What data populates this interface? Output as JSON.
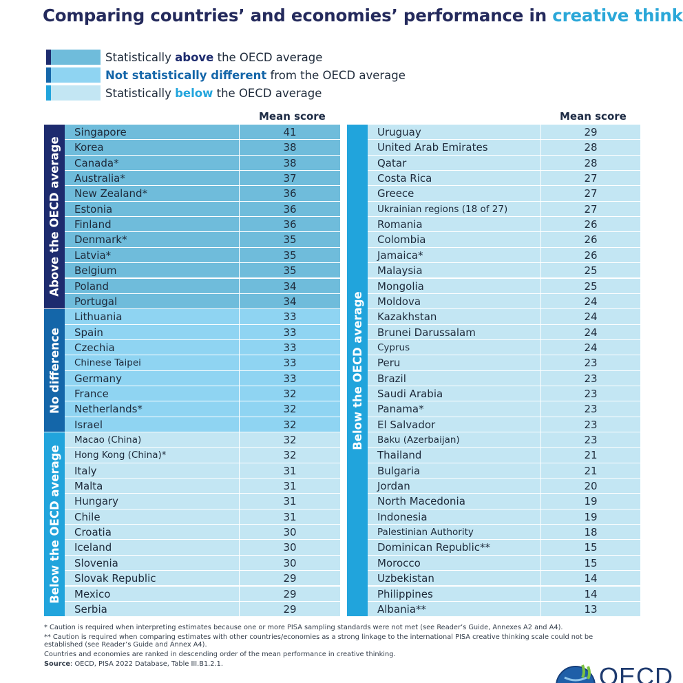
{
  "title": {
    "main": "Comparing countries’ and economies’ performance in ",
    "accent": "creative thinking"
  },
  "legend": [
    {
      "pre": "Statistically ",
      "bold": "above",
      "post": " the OECD average"
    },
    {
      "pre": "",
      "bold": "Not statistically different",
      "post": " from the OECD average"
    },
    {
      "pre": "Statistically ",
      "bold": "below",
      "post": " the OECD average"
    }
  ],
  "colors": {
    "above": "#6fbcdb",
    "no_difference": "#8fd4f2",
    "below": "#c3e6f3",
    "band_above": "#1d2b6e",
    "band_no_difference": "#1466a9",
    "band_below": "#21a4dc"
  },
  "chart_data": {
    "type": "table",
    "column_header": "Mean score",
    "group_labels": {
      "above": "Above the OECD average",
      "no_difference": "No difference",
      "below": "Below the OECD average"
    },
    "rows": [
      {
        "country": "Singapore",
        "score": 41,
        "group": "above"
      },
      {
        "country": "Korea",
        "score": 38,
        "group": "above"
      },
      {
        "country": "Canada*",
        "score": 38,
        "group": "above"
      },
      {
        "country": "Australia*",
        "score": 37,
        "group": "above"
      },
      {
        "country": "New Zealand*",
        "score": 36,
        "group": "above"
      },
      {
        "country": "Estonia",
        "score": 36,
        "group": "above"
      },
      {
        "country": "Finland",
        "score": 36,
        "group": "above"
      },
      {
        "country": "Denmark*",
        "score": 35,
        "group": "above"
      },
      {
        "country": "Latvia*",
        "score": 35,
        "group": "above"
      },
      {
        "country": "Belgium",
        "score": 35,
        "group": "above"
      },
      {
        "country": "Poland",
        "score": 34,
        "group": "above"
      },
      {
        "country": "Portugal",
        "score": 34,
        "group": "above"
      },
      {
        "country": "Lithuania",
        "score": 33,
        "group": "no_difference"
      },
      {
        "country": "Spain",
        "score": 33,
        "group": "no_difference"
      },
      {
        "country": "Czechia",
        "score": 33,
        "group": "no_difference"
      },
      {
        "country": "Chinese Taipei",
        "score": 33,
        "group": "no_difference"
      },
      {
        "country": "Germany",
        "score": 33,
        "group": "no_difference"
      },
      {
        "country": "France",
        "score": 32,
        "group": "no_difference"
      },
      {
        "country": "Netherlands*",
        "score": 32,
        "group": "no_difference"
      },
      {
        "country": "Israel",
        "score": 32,
        "group": "no_difference"
      },
      {
        "country": "Macao (China)",
        "score": 32,
        "group": "below"
      },
      {
        "country": "Hong Kong (China)*",
        "score": 32,
        "group": "below"
      },
      {
        "country": "Italy",
        "score": 31,
        "group": "below"
      },
      {
        "country": "Malta",
        "score": 31,
        "group": "below"
      },
      {
        "country": "Hungary",
        "score": 31,
        "group": "below"
      },
      {
        "country": "Chile",
        "score": 31,
        "group": "below"
      },
      {
        "country": "Croatia",
        "score": 30,
        "group": "below"
      },
      {
        "country": "Iceland",
        "score": 30,
        "group": "below"
      },
      {
        "country": "Slovenia",
        "score": 30,
        "group": "below"
      },
      {
        "country": "Slovak Republic",
        "score": 29,
        "group": "below"
      },
      {
        "country": "Mexico",
        "score": 29,
        "group": "below"
      },
      {
        "country": "Serbia",
        "score": 29,
        "group": "below"
      },
      {
        "country": "Uruguay",
        "score": 29,
        "group": "below"
      },
      {
        "country": "United Arab Emirates",
        "score": 28,
        "group": "below"
      },
      {
        "country": "Qatar",
        "score": 28,
        "group": "below"
      },
      {
        "country": "Costa Rica",
        "score": 27,
        "group": "below"
      },
      {
        "country": "Greece",
        "score": 27,
        "group": "below"
      },
      {
        "country": "Ukrainian regions (18 of 27)",
        "score": 27,
        "group": "below"
      },
      {
        "country": "Romania",
        "score": 26,
        "group": "below"
      },
      {
        "country": "Colombia",
        "score": 26,
        "group": "below"
      },
      {
        "country": "Jamaica*",
        "score": 26,
        "group": "below"
      },
      {
        "country": "Malaysia",
        "score": 25,
        "group": "below"
      },
      {
        "country": "Mongolia",
        "score": 25,
        "group": "below"
      },
      {
        "country": "Moldova",
        "score": 24,
        "group": "below"
      },
      {
        "country": "Kazakhstan",
        "score": 24,
        "group": "below"
      },
      {
        "country": "Brunei Darussalam",
        "score": 24,
        "group": "below"
      },
      {
        "country": "Cyprus",
        "score": 24,
        "group": "below"
      },
      {
        "country": "Peru",
        "score": 23,
        "group": "below"
      },
      {
        "country": "Brazil",
        "score": 23,
        "group": "below"
      },
      {
        "country": "Saudi Arabia",
        "score": 23,
        "group": "below"
      },
      {
        "country": "Panama*",
        "score": 23,
        "group": "below"
      },
      {
        "country": "El Salvador",
        "score": 23,
        "group": "below"
      },
      {
        "country": "Baku (Azerbaijan)",
        "score": 23,
        "group": "below"
      },
      {
        "country": "Thailand",
        "score": 21,
        "group": "below"
      },
      {
        "country": "Bulgaria",
        "score": 21,
        "group": "below"
      },
      {
        "country": "Jordan",
        "score": 20,
        "group": "below"
      },
      {
        "country": "North Macedonia",
        "score": 19,
        "group": "below"
      },
      {
        "country": "Indonesia",
        "score": 19,
        "group": "below"
      },
      {
        "country": "Palestinian Authority",
        "score": 18,
        "group": "below"
      },
      {
        "country": "Dominican Republic**",
        "score": 15,
        "group": "below"
      },
      {
        "country": "Morocco",
        "score": 15,
        "group": "below"
      },
      {
        "country": "Uzbekistan",
        "score": 14,
        "group": "below"
      },
      {
        "country": "Philippines",
        "score": 14,
        "group": "below"
      },
      {
        "country": "Albania**",
        "score": 13,
        "group": "below"
      }
    ]
  },
  "notes": {
    "note1": "* Caution is required when interpreting estimates because one or more PISA sampling standards were not met (see Reader’s Guide, Annexes A2 and A4).",
    "note2": "** Caution is required when comparing estimates with other countries/economies as a strong linkage to the international PISA creative thinking scale could not be established (see Reader’s Guide and Annex A4).",
    "note3": "Countries and economies are ranked in descending order of the mean performance in creative thinking.",
    "source_label": "Source",
    "source_text": ": OECD, PISA 2022 Database, Table III.B1.2.1."
  },
  "logo": {
    "text": "OECD"
  }
}
